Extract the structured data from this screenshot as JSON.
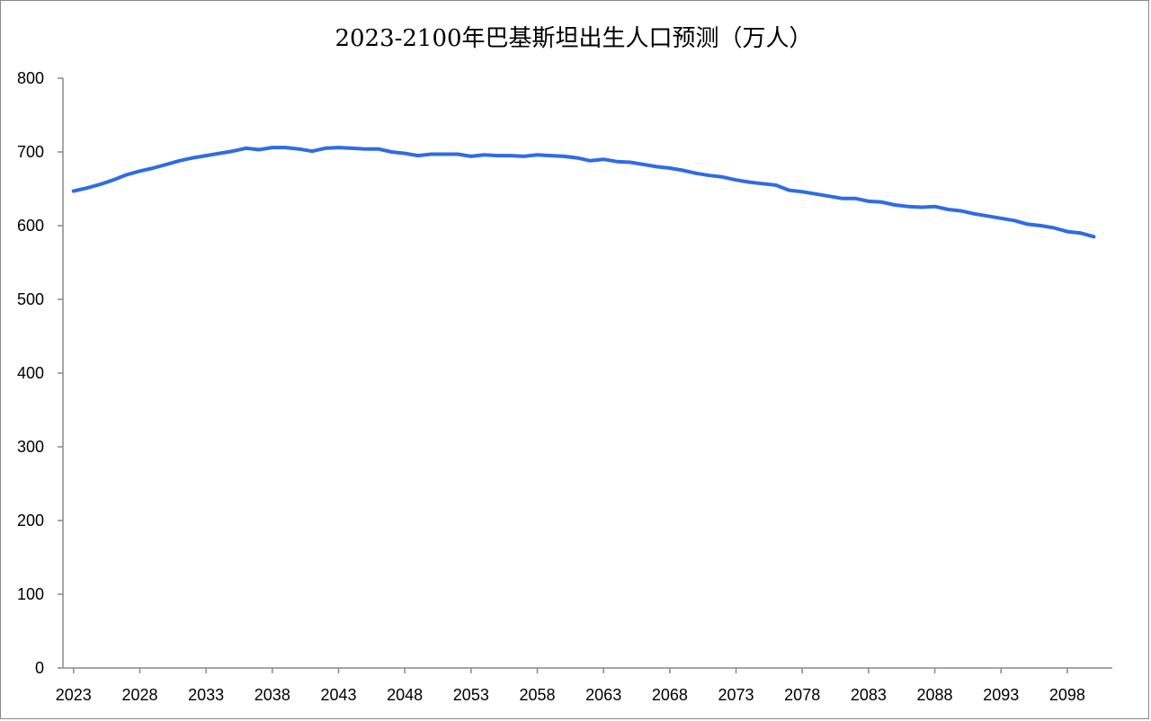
{
  "chart_data": {
    "type": "line",
    "title": "2023-2100年巴基斯坦出生人口预测（万人）",
    "xlabel": "",
    "ylabel": "",
    "ylim": [
      0,
      800
    ],
    "yticks": [
      0,
      100,
      200,
      300,
      400,
      500,
      600,
      700,
      800
    ],
    "xticks": [
      2023,
      2028,
      2033,
      2038,
      2043,
      2048,
      2053,
      2058,
      2063,
      2068,
      2073,
      2078,
      2083,
      2088,
      2093,
      2098
    ],
    "grid": false,
    "legend": "none",
    "colors": {
      "line": "#2f6ce5",
      "axis": "#888888"
    },
    "series": [
      {
        "x": [
          2023,
          2024,
          2025,
          2026,
          2027,
          2028,
          2029,
          2030,
          2031,
          2032,
          2033,
          2034,
          2035,
          2036,
          2037,
          2038,
          2039,
          2040,
          2041,
          2042,
          2043,
          2044,
          2045,
          2046,
          2047,
          2048,
          2049,
          2050,
          2051,
          2052,
          2053,
          2054,
          2055,
          2056,
          2057,
          2058,
          2059,
          2060,
          2061,
          2062,
          2063,
          2064,
          2065,
          2066,
          2067,
          2068,
          2069,
          2070,
          2071,
          2072,
          2073,
          2074,
          2075,
          2076,
          2077,
          2078,
          2079,
          2080,
          2081,
          2082,
          2083,
          2084,
          2085,
          2086,
          2087,
          2088,
          2089,
          2090,
          2091,
          2092,
          2093,
          2094,
          2095,
          2096,
          2097,
          2098,
          2099,
          2100
        ],
        "values": [
          647,
          651,
          656,
          662,
          669,
          674,
          678,
          683,
          688,
          692,
          695,
          698,
          701,
          705,
          703,
          706,
          706,
          704,
          701,
          705,
          706,
          705,
          704,
          704,
          700,
          698,
          695,
          697,
          697,
          697,
          694,
          696,
          695,
          695,
          694,
          696,
          695,
          694,
          692,
          688,
          690,
          687,
          686,
          683,
          680,
          678,
          675,
          671,
          668,
          666,
          662,
          659,
          657,
          655,
          648,
          646,
          643,
          640,
          637,
          637,
          633,
          632,
          628,
          626,
          625,
          626,
          622,
          620,
          616,
          613,
          610,
          607,
          602,
          600,
          597,
          592,
          590,
          585
        ]
      }
    ]
  }
}
